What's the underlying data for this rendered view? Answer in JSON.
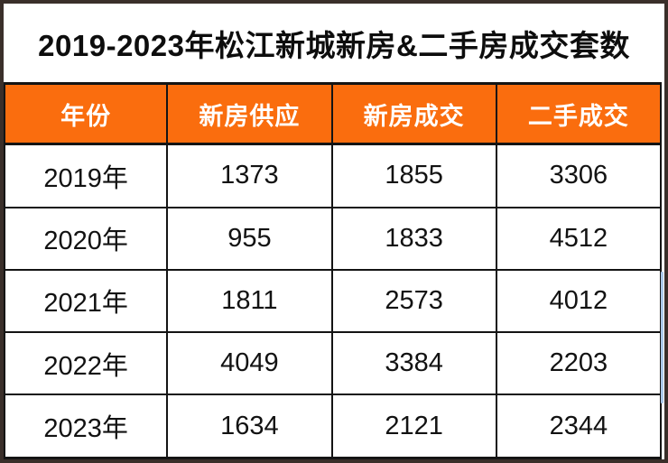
{
  "page": {
    "title": "2019-2023年松江新城新房&二手房成交套数"
  },
  "colors": {
    "header_orange": "#fa6d0e",
    "frame_brown": "#3a2f2a",
    "grid_black": "#141414",
    "header_text": "#ffffff",
    "body_text": "#121212",
    "artifact_blue": "#a9c7e9"
  },
  "table": {
    "headers": [
      "年份",
      "新房供应",
      "新房成交",
      "二手成交"
    ],
    "rows": [
      [
        "2019年",
        "1373",
        "1855",
        "3306"
      ],
      [
        "2020年",
        "955",
        "1833",
        "4512"
      ],
      [
        "2021年",
        "1811",
        "2573",
        "4012"
      ],
      [
        "2022年",
        "4049",
        "3384",
        "2203"
      ],
      [
        "2023年",
        "1634",
        "2121",
        "2344"
      ]
    ]
  },
  "chart_data": {
    "type": "table",
    "title": "2019-2023年松江新城新房&二手房成交套数",
    "categories": [
      "2019年",
      "2020年",
      "2021年",
      "2022年",
      "2023年"
    ],
    "series": [
      {
        "name": "新房供应",
        "values": [
          1373,
          955,
          1811,
          4049,
          1634
        ]
      },
      {
        "name": "新房成交",
        "values": [
          1855,
          1833,
          2573,
          3384,
          2121
        ]
      },
      {
        "name": "二手成交",
        "values": [
          3306,
          4512,
          4012,
          2203,
          2344
        ]
      }
    ]
  }
}
